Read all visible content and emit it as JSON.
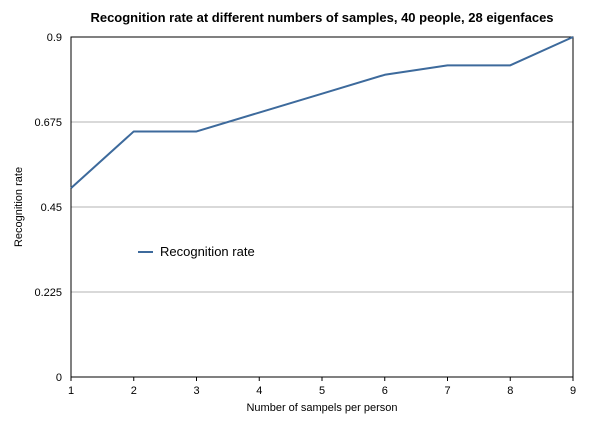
{
  "chart_data": {
    "type": "line",
    "title": "Recognition rate at different numbers of samples, 40 people, 28 eigenfaces",
    "xlabel": "Number of sampels per person",
    "ylabel": "Recognition rate",
    "x": [
      1,
      2,
      3,
      4,
      5,
      6,
      7,
      8,
      9
    ],
    "series": [
      {
        "name": "Recognition rate",
        "values": [
          0.5,
          0.65,
          0.65,
          0.7,
          0.75,
          0.8,
          0.825,
          0.825,
          0.9
        ],
        "color": "#3d6a9c"
      }
    ],
    "xlim": [
      1,
      9
    ],
    "ylim": [
      0,
      0.9
    ],
    "yticks": [
      "0",
      "0.225",
      "0.45",
      "0.675",
      "0.9"
    ],
    "xticks": [
      "1",
      "2",
      "3",
      "4",
      "5",
      "6",
      "7",
      "8",
      "9"
    ],
    "grid": true,
    "legend": "center-left"
  }
}
